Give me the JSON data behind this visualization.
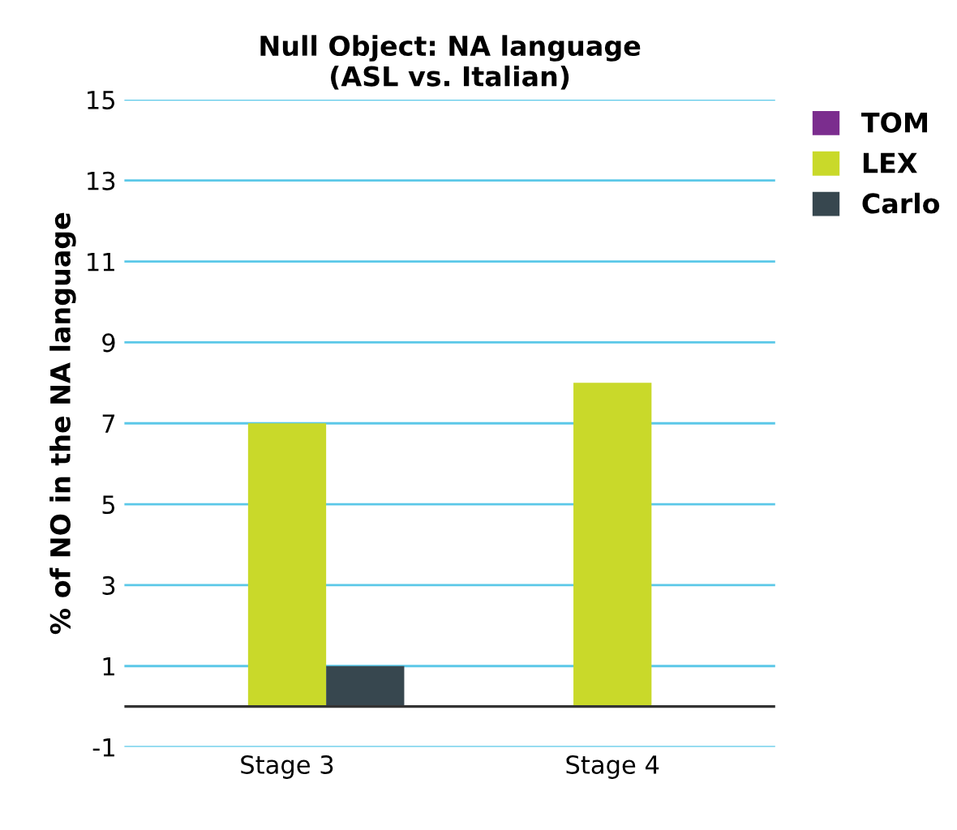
{
  "chart_data": {
    "type": "bar",
    "title": "Null Object: NA language\n(ASL vs. Italian)",
    "ylabel": "% of NO in the NA language",
    "categories": [
      "Stage 3",
      "Stage 4"
    ],
    "series": [
      {
        "name": "TOM",
        "color": "#7b2d8e",
        "values": [
          0,
          0
        ]
      },
      {
        "name": "LEX",
        "color": "#c9d92a",
        "values": [
          7,
          8
        ]
      },
      {
        "name": "Carlo",
        "color": "#37474f",
        "values": [
          1,
          0
        ]
      }
    ],
    "ylim": [
      -1,
      15
    ],
    "yticks": [
      -1,
      1,
      3,
      5,
      7,
      9,
      11,
      13,
      15
    ],
    "grid": "y",
    "legend": "top right"
  }
}
